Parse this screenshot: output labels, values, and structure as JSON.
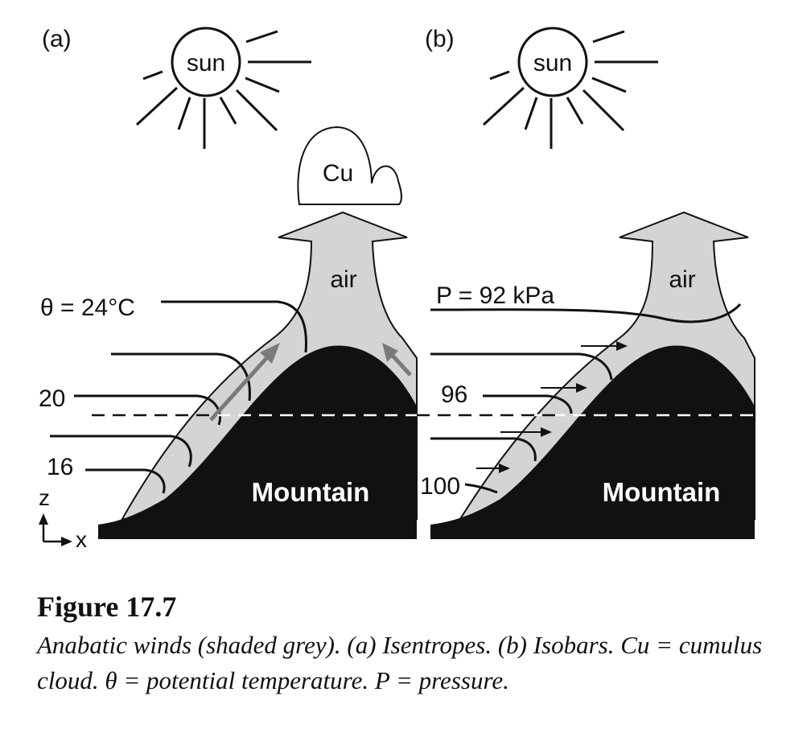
{
  "panels": [
    {
      "id": "a",
      "tag": "(a)",
      "sun_label": "sun",
      "cloud_label": "Cu",
      "air_label": "air",
      "mountain_label": "Mountain",
      "contour_labels": [
        "θ = 24°C",
        "20",
        "16"
      ]
    },
    {
      "id": "b",
      "tag": "(b)",
      "sun_label": "sun",
      "air_label": "air",
      "mountain_label": "Mountain",
      "contour_labels": [
        "P = 92 kPa",
        "96",
        "100"
      ]
    }
  ],
  "axes": {
    "z_label": "z",
    "x_label": "x"
  },
  "colors": {
    "air": "#d4d4d4",
    "mountain": "#111111",
    "arrow": "#7a7a7a",
    "line": "#111111"
  },
  "caption": {
    "title": "Figure 17.7",
    "text": "Anabatic winds (shaded grey). (a) Isentropes. (b) Isobars. Cu = cumulus cloud. θ = potential temperature. P = pressure."
  }
}
